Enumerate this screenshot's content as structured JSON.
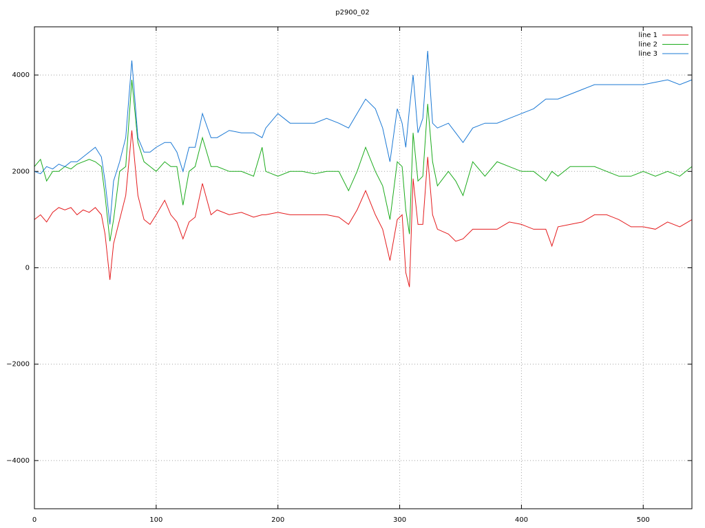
{
  "chart_data": {
    "type": "line",
    "title": "p2900_02",
    "xlim": [
      0,
      540
    ],
    "xticks": [
      0,
      100,
      200,
      300,
      400,
      500
    ],
    "ylim": [
      -5000,
      5000
    ],
    "yticks": [
      {
        "value": -4000,
        "label": "−4000"
      },
      {
        "value": -2000,
        "label": "−2000"
      },
      0,
      2000,
      4000
    ],
    "grid": true,
    "legend": "top-right",
    "x": [
      0,
      5,
      10,
      15,
      20,
      25,
      30,
      35,
      40,
      45,
      50,
      55,
      58,
      62,
      65,
      70,
      75,
      80,
      85,
      90,
      95,
      100,
      107,
      112,
      117,
      122,
      127,
      132,
      138,
      145,
      150,
      160,
      170,
      180,
      187,
      190,
      200,
      210,
      220,
      230,
      240,
      250,
      258,
      265,
      272,
      280,
      286,
      292,
      298,
      302,
      305,
      308,
      311,
      315,
      319,
      323,
      327,
      331,
      340,
      346,
      352,
      360,
      370,
      380,
      390,
      400,
      410,
      420,
      425,
      430,
      440,
      450,
      460,
      470,
      480,
      490,
      500,
      510,
      520,
      530,
      540
    ],
    "series": [
      {
        "name": "line 1",
        "color": "#e41a1c",
        "values": [
          1000,
          1100,
          950,
          1150,
          1250,
          1200,
          1250,
          1100,
          1200,
          1150,
          1250,
          1100,
          700,
          -250,
          500,
          1000,
          1500,
          2850,
          1500,
          1000,
          900,
          1100,
          1400,
          1100,
          950,
          600,
          950,
          1050,
          1750,
          1100,
          1200,
          1100,
          1150,
          1050,
          1100,
          1100,
          1150,
          1100,
          1100,
          1100,
          1100,
          1050,
          900,
          1200,
          1600,
          1100,
          800,
          150,
          1000,
          1100,
          -100,
          -400,
          1850,
          900,
          900,
          2300,
          1100,
          800,
          700,
          550,
          600,
          800,
          800,
          800,
          950,
          900,
          800,
          800,
          450,
          850,
          900,
          950,
          1100,
          1100,
          1000,
          850,
          850,
          800,
          950,
          850,
          1000
        ]
      },
      {
        "name": "line 2",
        "color": "#1aaa1a",
        "values": [
          2100,
          2250,
          1800,
          2000,
          2000,
          2100,
          2050,
          2150,
          2200,
          2250,
          2200,
          2100,
          1500,
          550,
          1000,
          2000,
          2100,
          3900,
          2600,
          2200,
          2100,
          2000,
          2200,
          2100,
          2100,
          1300,
          2000,
          2100,
          2700,
          2100,
          2100,
          2000,
          2000,
          1900,
          2500,
          2000,
          1900,
          2000,
          2000,
          1950,
          2000,
          2000,
          1600,
          2000,
          2500,
          2000,
          1700,
          1000,
          2200,
          2100,
          1200,
          700,
          2800,
          1800,
          1900,
          3400,
          2200,
          1700,
          2000,
          1800,
          1500,
          2200,
          1900,
          2200,
          2100,
          2000,
          2000,
          1800,
          2000,
          1900,
          2100,
          2100,
          2100,
          2000,
          1900,
          1900,
          2000,
          1900,
          2000,
          1900,
          2100
        ]
      },
      {
        "name": "line 3",
        "color": "#1a78d4",
        "values": [
          2000,
          1950,
          2100,
          2050,
          2150,
          2100,
          2200,
          2200,
          2300,
          2400,
          2500,
          2300,
          1800,
          900,
          1800,
          2200,
          2700,
          4300,
          2700,
          2400,
          2400,
          2500,
          2600,
          2600,
          2400,
          2000,
          2500,
          2500,
          3200,
          2700,
          2700,
          2850,
          2800,
          2800,
          2700,
          2900,
          3200,
          3000,
          3000,
          3000,
          3100,
          3000,
          2900,
          3200,
          3500,
          3300,
          2900,
          2200,
          3300,
          3000,
          2500,
          3300,
          4000,
          2800,
          3100,
          4500,
          3000,
          2900,
          3000,
          2800,
          2600,
          2900,
          3000,
          3000,
          3100,
          3200,
          3300,
          3500,
          3500,
          3500,
          3600,
          3700,
          3800,
          3800,
          3800,
          3800,
          3800,
          3850,
          3900,
          3800,
          3900
        ]
      }
    ]
  }
}
